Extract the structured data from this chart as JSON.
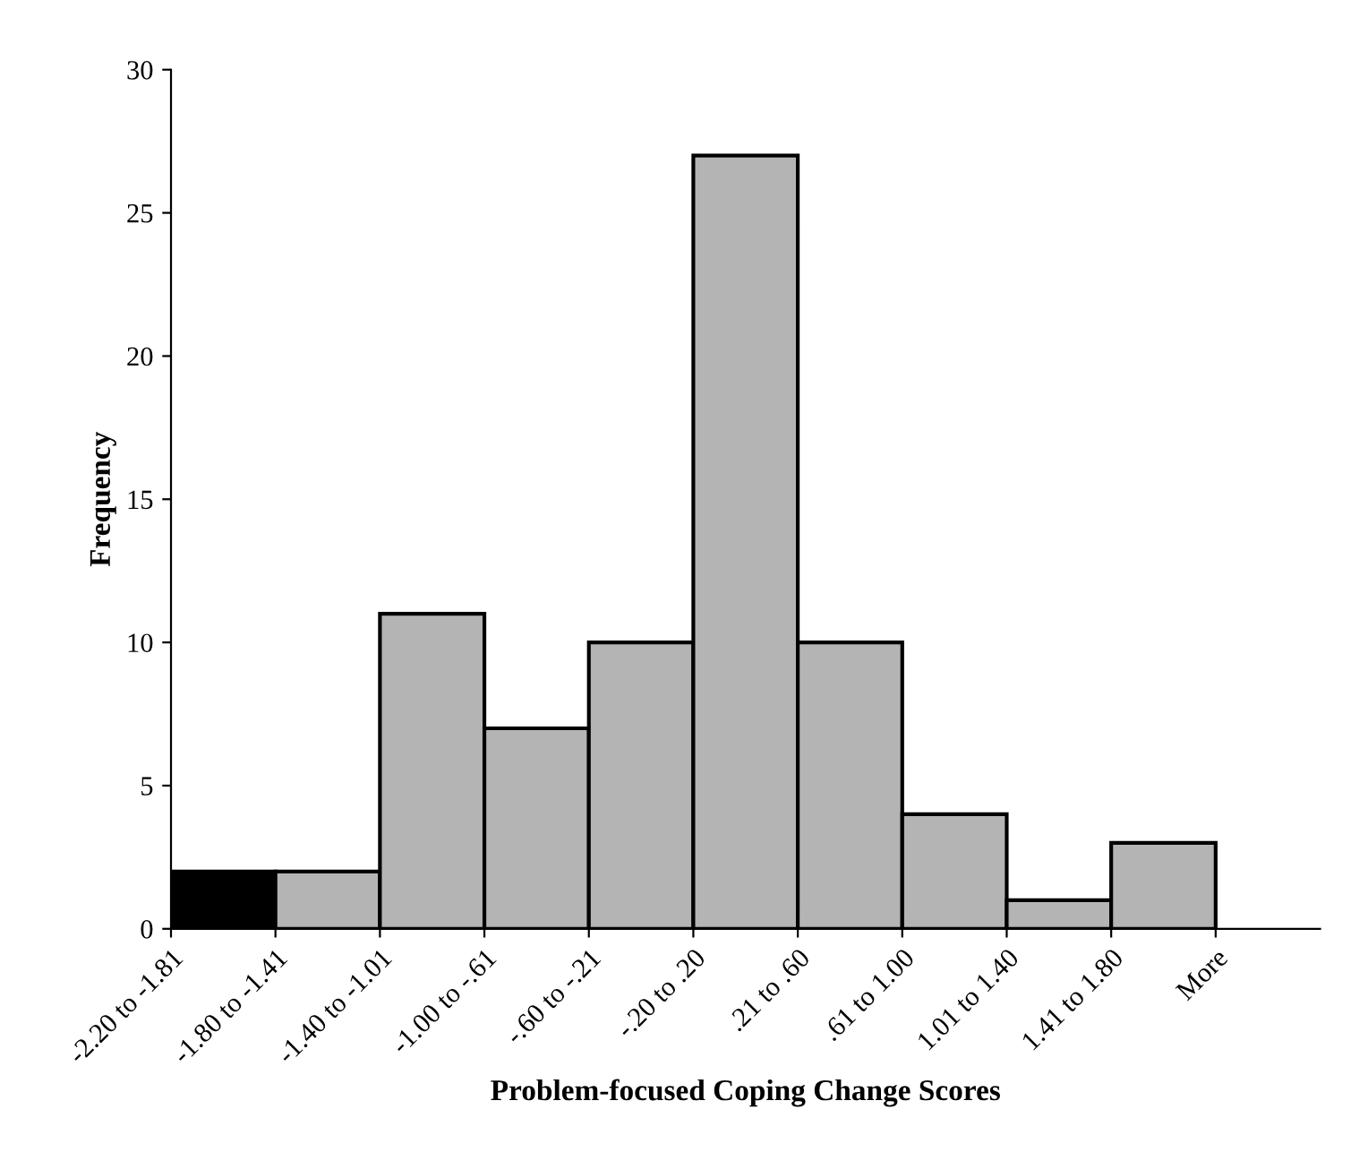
{
  "chart_data": {
    "type": "bar",
    "xlabel": "Problem-focused Coping Change Scores",
    "ylabel": "Frequency",
    "categories": [
      "-2.20 to -1.81",
      "-1.80 to -1.41",
      "-1.40 to -1.01",
      "-1.00 to -.61",
      "-.60 to -.21",
      "-.20 to .20",
      ".21 to .60",
      ".61 to 1.00",
      "1.01 to 1.40",
      "1.41 to 1.80",
      "More"
    ],
    "values": [
      2,
      2,
      11,
      7,
      10,
      27,
      10,
      4,
      1,
      3,
      0
    ],
    "colors": [
      "#000000",
      "#b4b4b4",
      "#b4b4b4",
      "#b4b4b4",
      "#b4b4b4",
      "#b4b4b4",
      "#b4b4b4",
      "#b4b4b4",
      "#b4b4b4",
      "#b4b4b4",
      "#b4b4b4"
    ],
    "ylim": [
      0,
      30
    ],
    "yticks": [
      0,
      5,
      10,
      15,
      20,
      25,
      30
    ],
    "grid": false,
    "legend": false
  }
}
